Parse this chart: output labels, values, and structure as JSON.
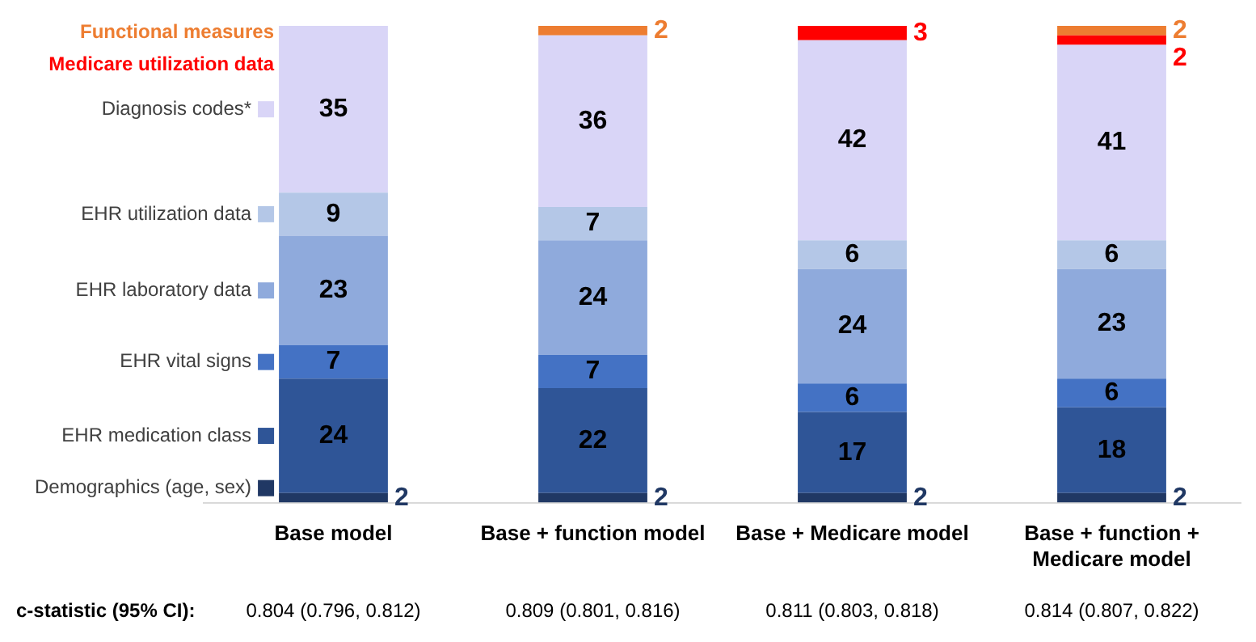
{
  "chart_data": {
    "type": "bar",
    "stacked": true,
    "legend": "left",
    "categories": [
      "Base model",
      "Base + function model",
      "Base + Medicare model",
      "Base + function +\nMedicare model"
    ],
    "series": [
      {
        "name": "Demographics (age, sex)",
        "color": "#203864",
        "values": [
          2,
          2,
          2,
          2
        ],
        "value_labels": [
          "2",
          "2",
          "2",
          "2"
        ]
      },
      {
        "name": "EHR medication class",
        "color": "#2f5597",
        "values": [
          24,
          22,
          17,
          18
        ],
        "value_labels": [
          "24",
          "22",
          "17",
          "18"
        ]
      },
      {
        "name": "EHR vital signs",
        "color": "#4472c4",
        "values": [
          7,
          7,
          6,
          6
        ],
        "value_labels": [
          "7",
          "7",
          "6",
          "6"
        ]
      },
      {
        "name": "EHR laboratory data",
        "color": "#8faadc",
        "values": [
          23,
          24,
          24,
          23
        ],
        "value_labels": [
          "23",
          "24",
          "24",
          "23"
        ]
      },
      {
        "name": "EHR utilization data",
        "color": "#b4c7e7",
        "values": [
          9,
          7,
          6,
          6
        ],
        "value_labels": [
          "9",
          "7",
          "6",
          "6"
        ]
      },
      {
        "name": "Diagnosis codes*",
        "color": "#d9d5f7",
        "values": [
          35,
          36,
          42,
          41
        ],
        "value_labels": [
          "35",
          "36",
          "42",
          "41"
        ]
      },
      {
        "name": "Medicare utilization data",
        "color": "#ff0000",
        "values": [
          0,
          0,
          3,
          2
        ],
        "value_labels": [
          null,
          null,
          "3",
          "2"
        ]
      },
      {
        "name": "Functional measures",
        "color": "#ed7d31",
        "values": [
          0,
          2,
          0,
          2
        ],
        "value_labels": [
          null,
          "2",
          null,
          "2"
        ]
      }
    ],
    "annotations": [
      "c-statistic (95% CI):",
      "0.804 (0.796, 0.812)",
      "0.809 (0.801, 0.816)",
      "0.811 (0.803, 0.818)",
      "0.814 (0.807, 0.822)"
    ]
  }
}
